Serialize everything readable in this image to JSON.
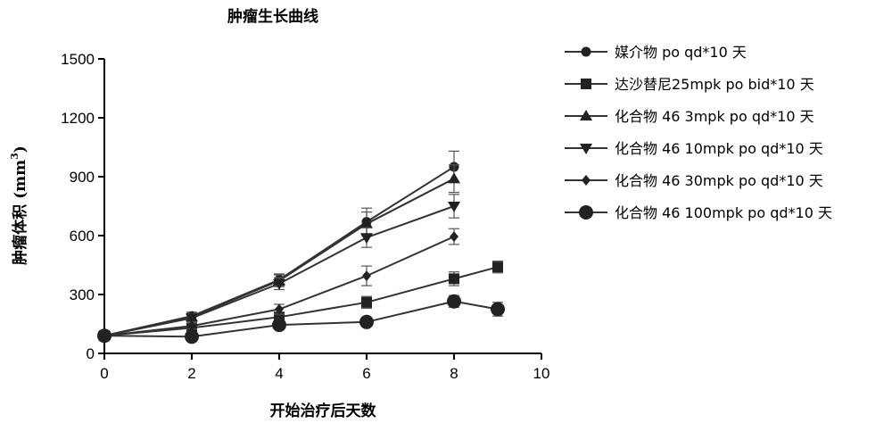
{
  "chart_data": {
    "type": "line",
    "title": "肿瘤生长曲线",
    "xlabel": "开始治疗后天数",
    "ylabel": "肿瘤体积 (mm",
    "ylabel_superscript": "3",
    "ylabel_suffix": ")",
    "xlim": [
      0,
      10
    ],
    "ylim": [
      0,
      1500
    ],
    "xticks": [
      "0",
      "2",
      "4",
      "6",
      "8",
      "10"
    ],
    "yticks": [
      "0",
      "300",
      "600",
      "900",
      "1200",
      "1500"
    ],
    "grid": false,
    "legend_position": "right",
    "series": [
      {
        "name": "媒介物 po qd*10 天",
        "marker": "circle-small",
        "x": [
          0,
          2,
          4,
          6,
          8
        ],
        "y": [
          90,
          190,
          375,
          670,
          950
        ],
        "err": [
          15,
          20,
          30,
          70,
          80
        ]
      },
      {
        "name": "达沙替尼25mpk po bid*10 天",
        "marker": "square",
        "x": [
          0,
          2,
          4,
          6,
          8,
          9
        ],
        "y": [
          90,
          130,
          185,
          260,
          380,
          440
        ],
        "err": [
          10,
          15,
          20,
          30,
          35,
          30
        ]
      },
      {
        "name": "化合物 46 3mpk po qd*10 天",
        "marker": "triangle-up",
        "x": [
          0,
          2,
          4,
          6,
          8
        ],
        "y": [
          90,
          185,
          370,
          660,
          890
        ],
        "err": [
          15,
          20,
          30,
          60,
          70
        ]
      },
      {
        "name": "化合物 46 10mpk po qd*10 天",
        "marker": "triangle-down",
        "x": [
          0,
          2,
          4,
          6,
          8
        ],
        "y": [
          90,
          180,
          355,
          590,
          750
        ],
        "err": [
          15,
          20,
          30,
          50,
          60
        ]
      },
      {
        "name": "化合物 46 30mpk po qd*10 天",
        "marker": "diamond",
        "x": [
          0,
          2,
          4,
          6,
          8
        ],
        "y": [
          90,
          140,
          225,
          395,
          595
        ],
        "err": [
          10,
          15,
          25,
          50,
          40
        ]
      },
      {
        "name": "化合物 46 100mpk po qd*10 天",
        "marker": "circle-large",
        "x": [
          0,
          2,
          4,
          6,
          8,
          9
        ],
        "y": [
          90,
          85,
          145,
          160,
          265,
          225
        ],
        "err": [
          10,
          10,
          20,
          20,
          30,
          35
        ]
      }
    ]
  }
}
